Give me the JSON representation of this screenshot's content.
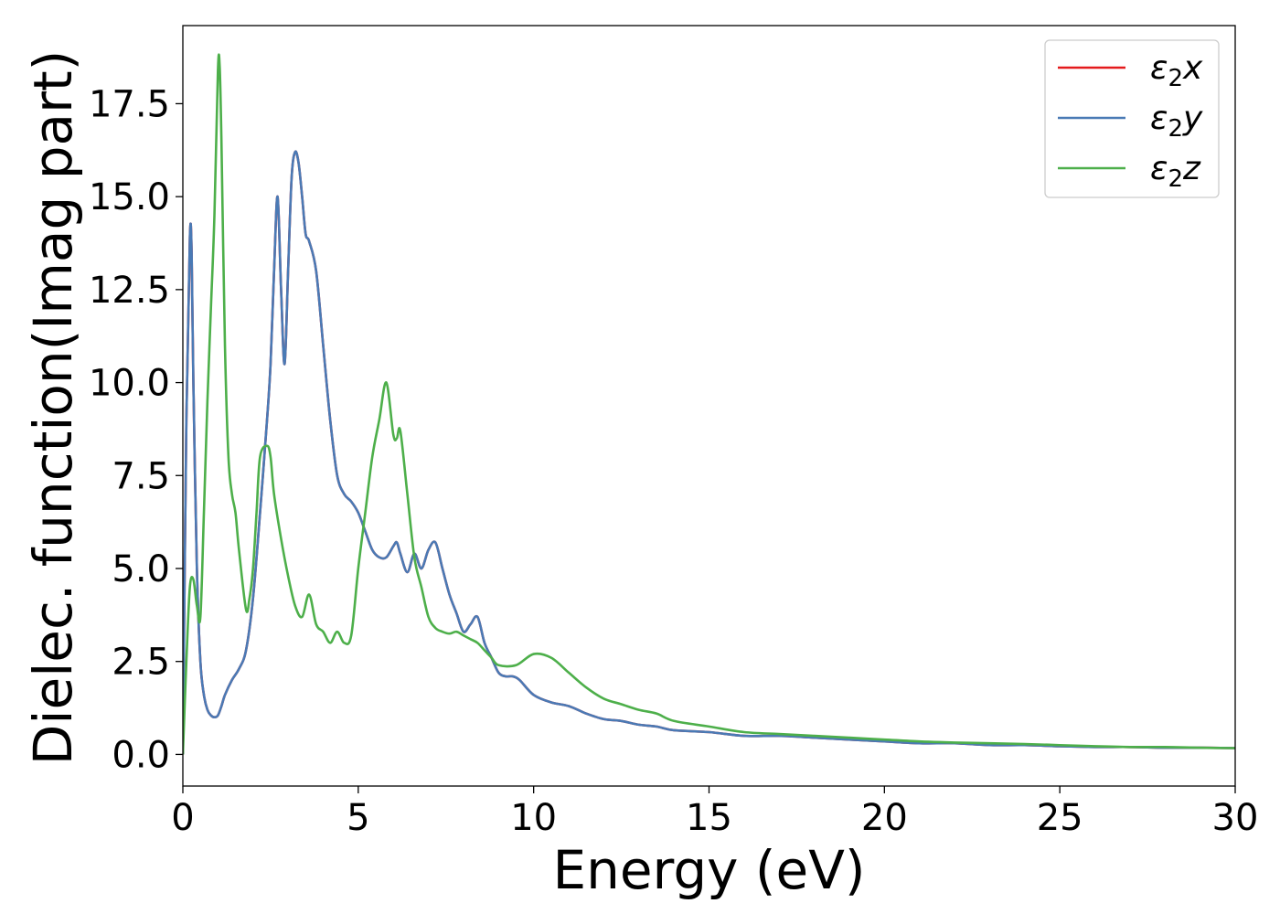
{
  "chart_data": {
    "type": "line",
    "title": "",
    "xlabel": "Energy (eV)",
    "ylabel": "Dielec. function(Imag part)",
    "xlim": [
      0,
      30
    ],
    "ylim": [
      -0.85,
      19.6
    ],
    "xticks": [
      0,
      5,
      10,
      15,
      20,
      25,
      30
    ],
    "xtick_labels": [
      "0",
      "5",
      "10",
      "15",
      "20",
      "25",
      "30"
    ],
    "yticks": [
      0,
      2.5,
      5,
      7.5,
      10,
      12.5,
      15,
      17.5
    ],
    "ytick_labels": [
      "0.0",
      "2.5",
      "5.0",
      "7.5",
      "10.0",
      "12.5",
      "15.0",
      "17.5"
    ],
    "grid": false,
    "legend_position": "top-right",
    "series": [
      {
        "name": "ε₂x",
        "label_base": "ε",
        "label_sub": "2",
        "label_axis": "x",
        "color": "#e41a1c",
        "x": [
          0,
          0.1,
          0.2,
          0.25,
          0.3,
          0.4,
          0.5,
          0.6,
          0.7,
          0.8,
          0.9,
          1.0,
          1.1,
          1.2,
          1.4,
          1.6,
          1.8,
          2.0,
          2.2,
          2.4,
          2.5,
          2.6,
          2.7,
          2.8,
          2.9,
          3.0,
          3.1,
          3.2,
          3.3,
          3.4,
          3.5,
          3.6,
          3.8,
          4.0,
          4.2,
          4.4,
          4.6,
          4.8,
          5.0,
          5.2,
          5.4,
          5.6,
          5.8,
          6.0,
          6.1,
          6.2,
          6.4,
          6.6,
          6.8,
          7.0,
          7.2,
          7.4,
          7.6,
          7.8,
          8.0,
          8.2,
          8.4,
          8.6,
          8.8,
          9.0,
          9.2,
          9.4,
          9.6,
          10,
          10.5,
          11,
          11.5,
          12,
          12.5,
          13,
          13.5,
          14,
          15,
          16,
          17,
          18,
          19,
          20,
          21,
          22,
          23,
          24,
          25,
          26,
          27,
          28,
          29,
          30
        ],
        "y": [
          0,
          9,
          13.9,
          13.5,
          10,
          5,
          2.5,
          1.6,
          1.2,
          1.05,
          1.0,
          1.05,
          1.3,
          1.6,
          2.0,
          2.3,
          2.8,
          4.2,
          6.5,
          9.0,
          10.5,
          13.0,
          15.0,
          12.5,
          10.5,
          13.0,
          15.5,
          16.2,
          15.9,
          15.0,
          14.0,
          13.8,
          13.0,
          11.0,
          9.0,
          7.5,
          7.0,
          6.8,
          6.5,
          6.0,
          5.5,
          5.3,
          5.3,
          5.6,
          5.7,
          5.4,
          4.9,
          5.4,
          5.0,
          5.5,
          5.7,
          5.0,
          4.3,
          3.8,
          3.3,
          3.5,
          3.7,
          3.0,
          2.6,
          2.2,
          2.1,
          2.1,
          2.0,
          1.6,
          1.4,
          1.3,
          1.1,
          0.95,
          0.9,
          0.8,
          0.75,
          0.65,
          0.6,
          0.5,
          0.5,
          0.45,
          0.4,
          0.35,
          0.3,
          0.3,
          0.25,
          0.25,
          0.22,
          0.2,
          0.2,
          0.18,
          0.18,
          0.17
        ]
      },
      {
        "name": "ε₂y",
        "label_base": "ε",
        "label_sub": "2",
        "label_axis": "y",
        "color": "#4a7ab5",
        "x": [
          0,
          0.1,
          0.2,
          0.25,
          0.3,
          0.4,
          0.5,
          0.6,
          0.7,
          0.8,
          0.9,
          1.0,
          1.1,
          1.2,
          1.4,
          1.6,
          1.8,
          2.0,
          2.2,
          2.4,
          2.5,
          2.6,
          2.7,
          2.8,
          2.9,
          3.0,
          3.1,
          3.2,
          3.3,
          3.4,
          3.5,
          3.6,
          3.8,
          4.0,
          4.2,
          4.4,
          4.6,
          4.8,
          5.0,
          5.2,
          5.4,
          5.6,
          5.8,
          6.0,
          6.1,
          6.2,
          6.4,
          6.6,
          6.8,
          7.0,
          7.2,
          7.4,
          7.6,
          7.8,
          8.0,
          8.2,
          8.4,
          8.6,
          8.8,
          9.0,
          9.2,
          9.4,
          9.6,
          10,
          10.5,
          11,
          11.5,
          12,
          12.5,
          13,
          13.5,
          14,
          15,
          16,
          17,
          18,
          19,
          20,
          21,
          22,
          23,
          24,
          25,
          26,
          27,
          28,
          29,
          30
        ],
        "y": [
          0,
          9,
          13.9,
          13.5,
          10,
          5,
          2.5,
          1.6,
          1.2,
          1.05,
          1.0,
          1.05,
          1.3,
          1.6,
          2.0,
          2.3,
          2.8,
          4.2,
          6.5,
          9.0,
          10.5,
          13.0,
          15.0,
          12.5,
          10.5,
          13.0,
          15.5,
          16.2,
          15.9,
          15.0,
          14.0,
          13.8,
          13.0,
          11.0,
          9.0,
          7.5,
          7.0,
          6.8,
          6.5,
          6.0,
          5.5,
          5.3,
          5.3,
          5.6,
          5.7,
          5.4,
          4.9,
          5.4,
          5.0,
          5.5,
          5.7,
          5.0,
          4.3,
          3.8,
          3.3,
          3.5,
          3.7,
          3.0,
          2.6,
          2.2,
          2.1,
          2.1,
          2.0,
          1.6,
          1.4,
          1.3,
          1.1,
          0.95,
          0.9,
          0.8,
          0.75,
          0.65,
          0.6,
          0.5,
          0.5,
          0.45,
          0.4,
          0.35,
          0.3,
          0.3,
          0.25,
          0.25,
          0.22,
          0.2,
          0.2,
          0.18,
          0.18,
          0.17
        ]
      },
      {
        "name": "ε₂z",
        "label_base": "ε",
        "label_sub": "2",
        "label_axis": "z",
        "color": "#4daf4a",
        "x": [
          0,
          0.1,
          0.2,
          0.3,
          0.4,
          0.5,
          0.6,
          0.7,
          0.8,
          0.9,
          1.0,
          1.05,
          1.1,
          1.2,
          1.3,
          1.4,
          1.5,
          1.6,
          1.8,
          1.9,
          2.0,
          2.1,
          2.2,
          2.4,
          2.5,
          2.6,
          2.8,
          3.0,
          3.2,
          3.4,
          3.6,
          3.8,
          4.0,
          4.2,
          4.4,
          4.6,
          4.8,
          5.0,
          5.2,
          5.4,
          5.6,
          5.8,
          6.0,
          6.1,
          6.2,
          6.4,
          6.6,
          6.8,
          7.0,
          7.2,
          7.4,
          7.6,
          7.8,
          8.0,
          8.2,
          8.4,
          8.6,
          8.8,
          9.0,
          9.5,
          10,
          10.5,
          11,
          11.5,
          12,
          12.5,
          13,
          13.5,
          14,
          15,
          16,
          17,
          18,
          19,
          20,
          21,
          22,
          23,
          24,
          25,
          26,
          27,
          28,
          29,
          30
        ],
        "y": [
          0,
          2.5,
          4.5,
          4.7,
          4.0,
          3.7,
          6.5,
          9.5,
          12,
          14.5,
          18.4,
          18.5,
          16.5,
          11,
          8,
          7.0,
          6.5,
          5.5,
          3.9,
          4.2,
          5.0,
          6.5,
          8.0,
          8.3,
          8.0,
          7.0,
          5.8,
          4.8,
          4.0,
          3.7,
          4.3,
          3.5,
          3.3,
          3.0,
          3.3,
          3.0,
          3.2,
          5.0,
          6.5,
          8.0,
          9.0,
          10.0,
          8.6,
          8.5,
          8.7,
          7.0,
          5.3,
          4.5,
          3.7,
          3.4,
          3.3,
          3.25,
          3.3,
          3.2,
          3.1,
          3.0,
          2.8,
          2.6,
          2.4,
          2.4,
          2.7,
          2.6,
          2.2,
          1.8,
          1.5,
          1.35,
          1.2,
          1.1,
          0.9,
          0.75,
          0.6,
          0.55,
          0.5,
          0.45,
          0.4,
          0.35,
          0.32,
          0.3,
          0.28,
          0.25,
          0.22,
          0.2,
          0.2,
          0.18,
          0.17
        ]
      }
    ]
  }
}
